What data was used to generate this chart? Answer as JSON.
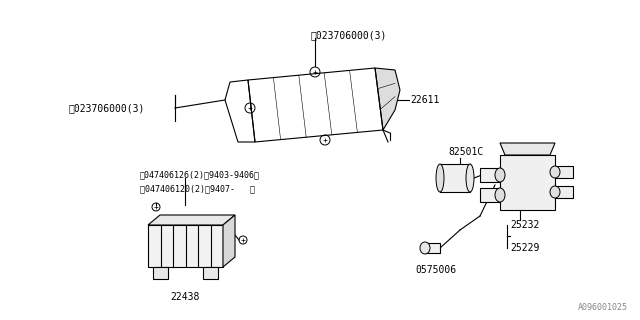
{
  "background_color": "#ffffff",
  "diagram_id": "A096001025",
  "line_color": "#000000",
  "text_color": "#000000",
  "font_size": 7,
  "small_font_size": 6,
  "labels": {
    "N_top": "ⓓ023706000(3)",
    "N_left": "ⓓ023706000(3)",
    "S1": "ⓘ047406126(2)（9403-9406）",
    "S2": "ⓘ047406120(2)（9407-   ）",
    "part_22611": "22611",
    "part_22438": "22438",
    "part_82501C": "82501C",
    "part_25232": "25232",
    "part_25229": "25229",
    "part_0575006": "0575006",
    "diagram_id": "A096001025"
  }
}
